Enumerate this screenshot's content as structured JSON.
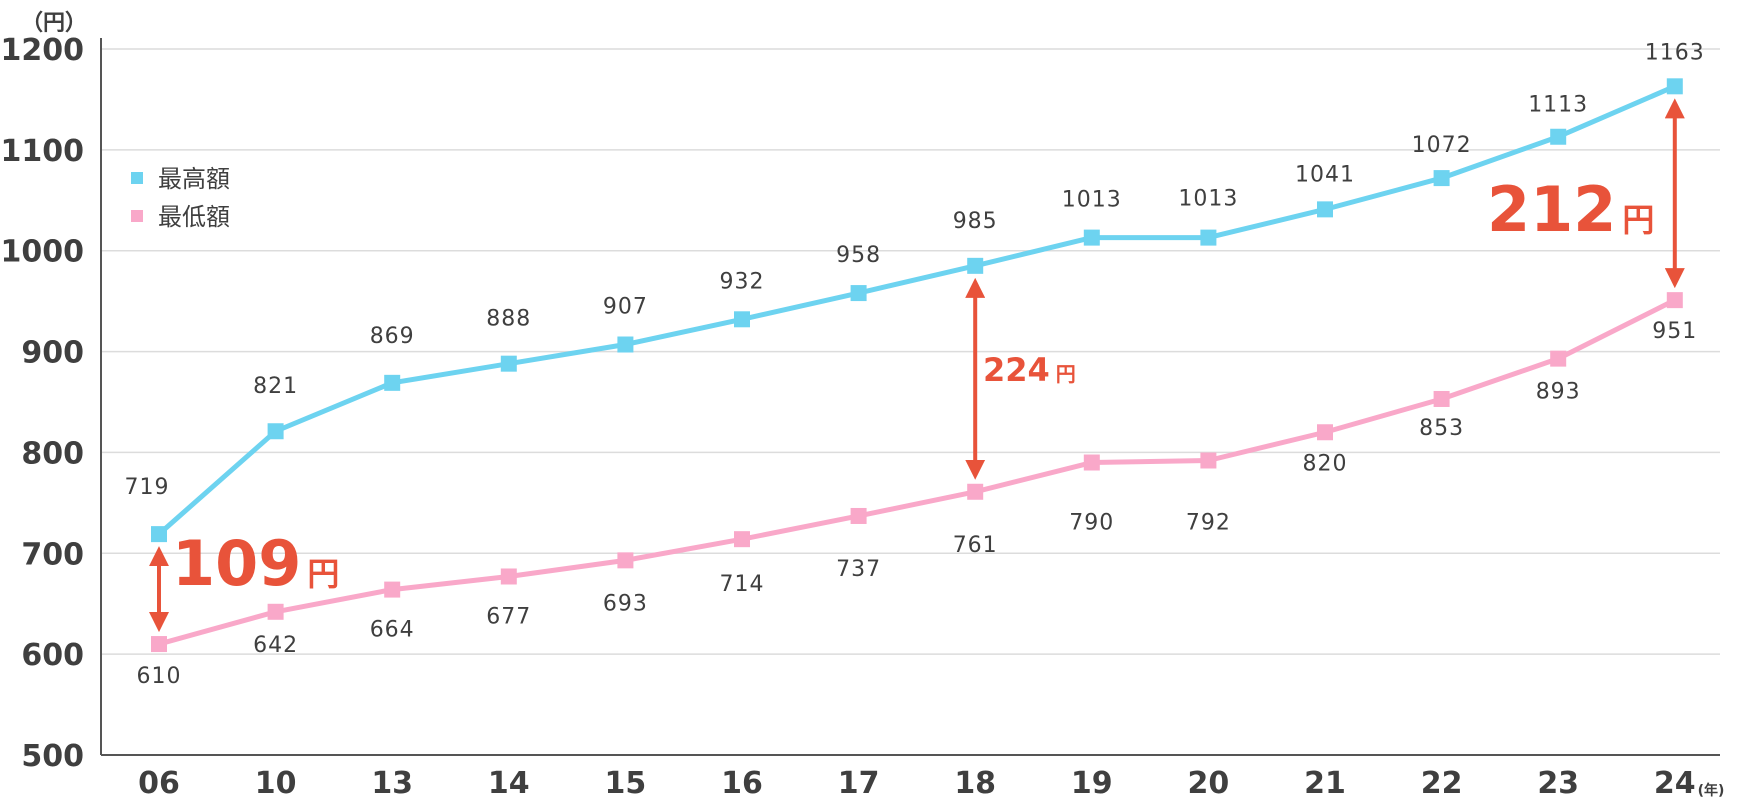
{
  "chart_data": {
    "type": "line",
    "y_unit": "（円）",
    "x_unit": "(年)",
    "ylim": [
      500,
      1200
    ],
    "yticks": [
      "500",
      "600",
      "700",
      "800",
      "900",
      "1000",
      "1100",
      "1200"
    ],
    "categories": [
      "06",
      "10",
      "13",
      "14",
      "15",
      "16",
      "17",
      "18",
      "19",
      "20",
      "21",
      "22",
      "23",
      "24"
    ],
    "grid": true,
    "legend_position": "top-left",
    "series": [
      {
        "name": "最高額",
        "color": "#6dd3f0",
        "values": [
          719,
          821,
          869,
          888,
          907,
          932,
          958,
          985,
          1013,
          1013,
          1041,
          1072,
          1113,
          1163
        ],
        "labels": [
          "719",
          "821",
          "869",
          "888",
          "907",
          "932",
          "958",
          "985",
          "1013",
          "1013",
          "1041",
          "1072",
          "1113",
          "1163"
        ]
      },
      {
        "name": "最低額",
        "color": "#f9a8c9",
        "values": [
          610,
          642,
          664,
          677,
          693,
          714,
          737,
          761,
          790,
          792,
          820,
          853,
          893,
          951
        ],
        "labels": [
          "610",
          "642",
          "664",
          "677",
          "693",
          "714",
          "737",
          "761",
          "790",
          "792",
          "820",
          "853",
          "893",
          "951"
        ]
      }
    ],
    "annotations": [
      {
        "category": "06",
        "number": "109",
        "unit": "円"
      },
      {
        "category": "18",
        "number": "224",
        "unit": "円"
      },
      {
        "category": "24",
        "number": "212",
        "unit": "円"
      }
    ],
    "accent_color": "#e8533a"
  }
}
